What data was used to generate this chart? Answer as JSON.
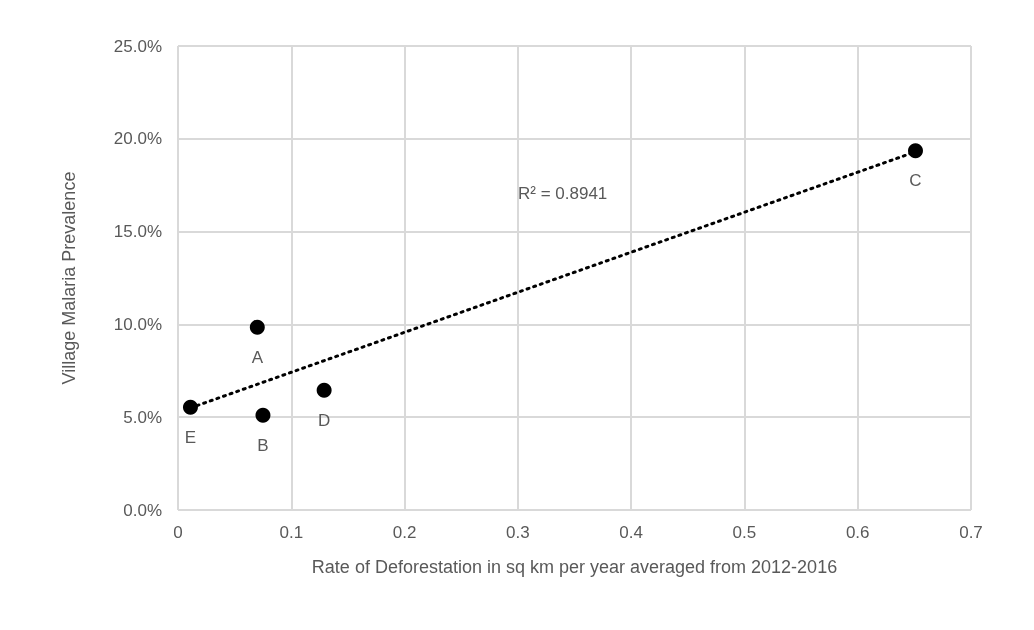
{
  "chart_data": {
    "type": "scatter",
    "xlabel": "Rate of Deforestation in sq km per year averaged from 2012-2016",
    "ylabel": "Village Malaria Prevalence",
    "annotations": [
      "R² = 0.8941"
    ],
    "series": [
      {
        "color": "#000000",
        "marker": "circle",
        "x": [
          0.07,
          0.075,
          0.651,
          0.129,
          0.011
        ],
        "values": [
          9.85,
          5.11,
          19.36,
          6.45,
          5.54
        ],
        "value_labels": [
          "A",
          "B",
          "C",
          "D",
          "E"
        ]
      },
      {
        "type": "line",
        "color": "#000000",
        "line_style": "dotted",
        "marker": "none",
        "x": [
          0.011,
          0.651
        ],
        "values": [
          5.5,
          19.3
        ]
      }
    ],
    "xlim": [
      0,
      0.7
    ],
    "xticks": [
      0,
      0.1,
      0.2,
      0.3,
      0.4,
      0.5,
      0.6,
      0.7
    ],
    "ylim": [
      0,
      25
    ],
    "yticks": [
      {
        "value": 0,
        "label": "0.0%"
      },
      {
        "value": 5,
        "label": "5.0%"
      },
      {
        "value": 10,
        "label": "10.0%"
      },
      {
        "value": 15,
        "label": "15.0%"
      },
      {
        "value": 20,
        "label": "20.0%"
      },
      {
        "value": 25,
        "label": "25.0%"
      }
    ],
    "grid": true
  }
}
